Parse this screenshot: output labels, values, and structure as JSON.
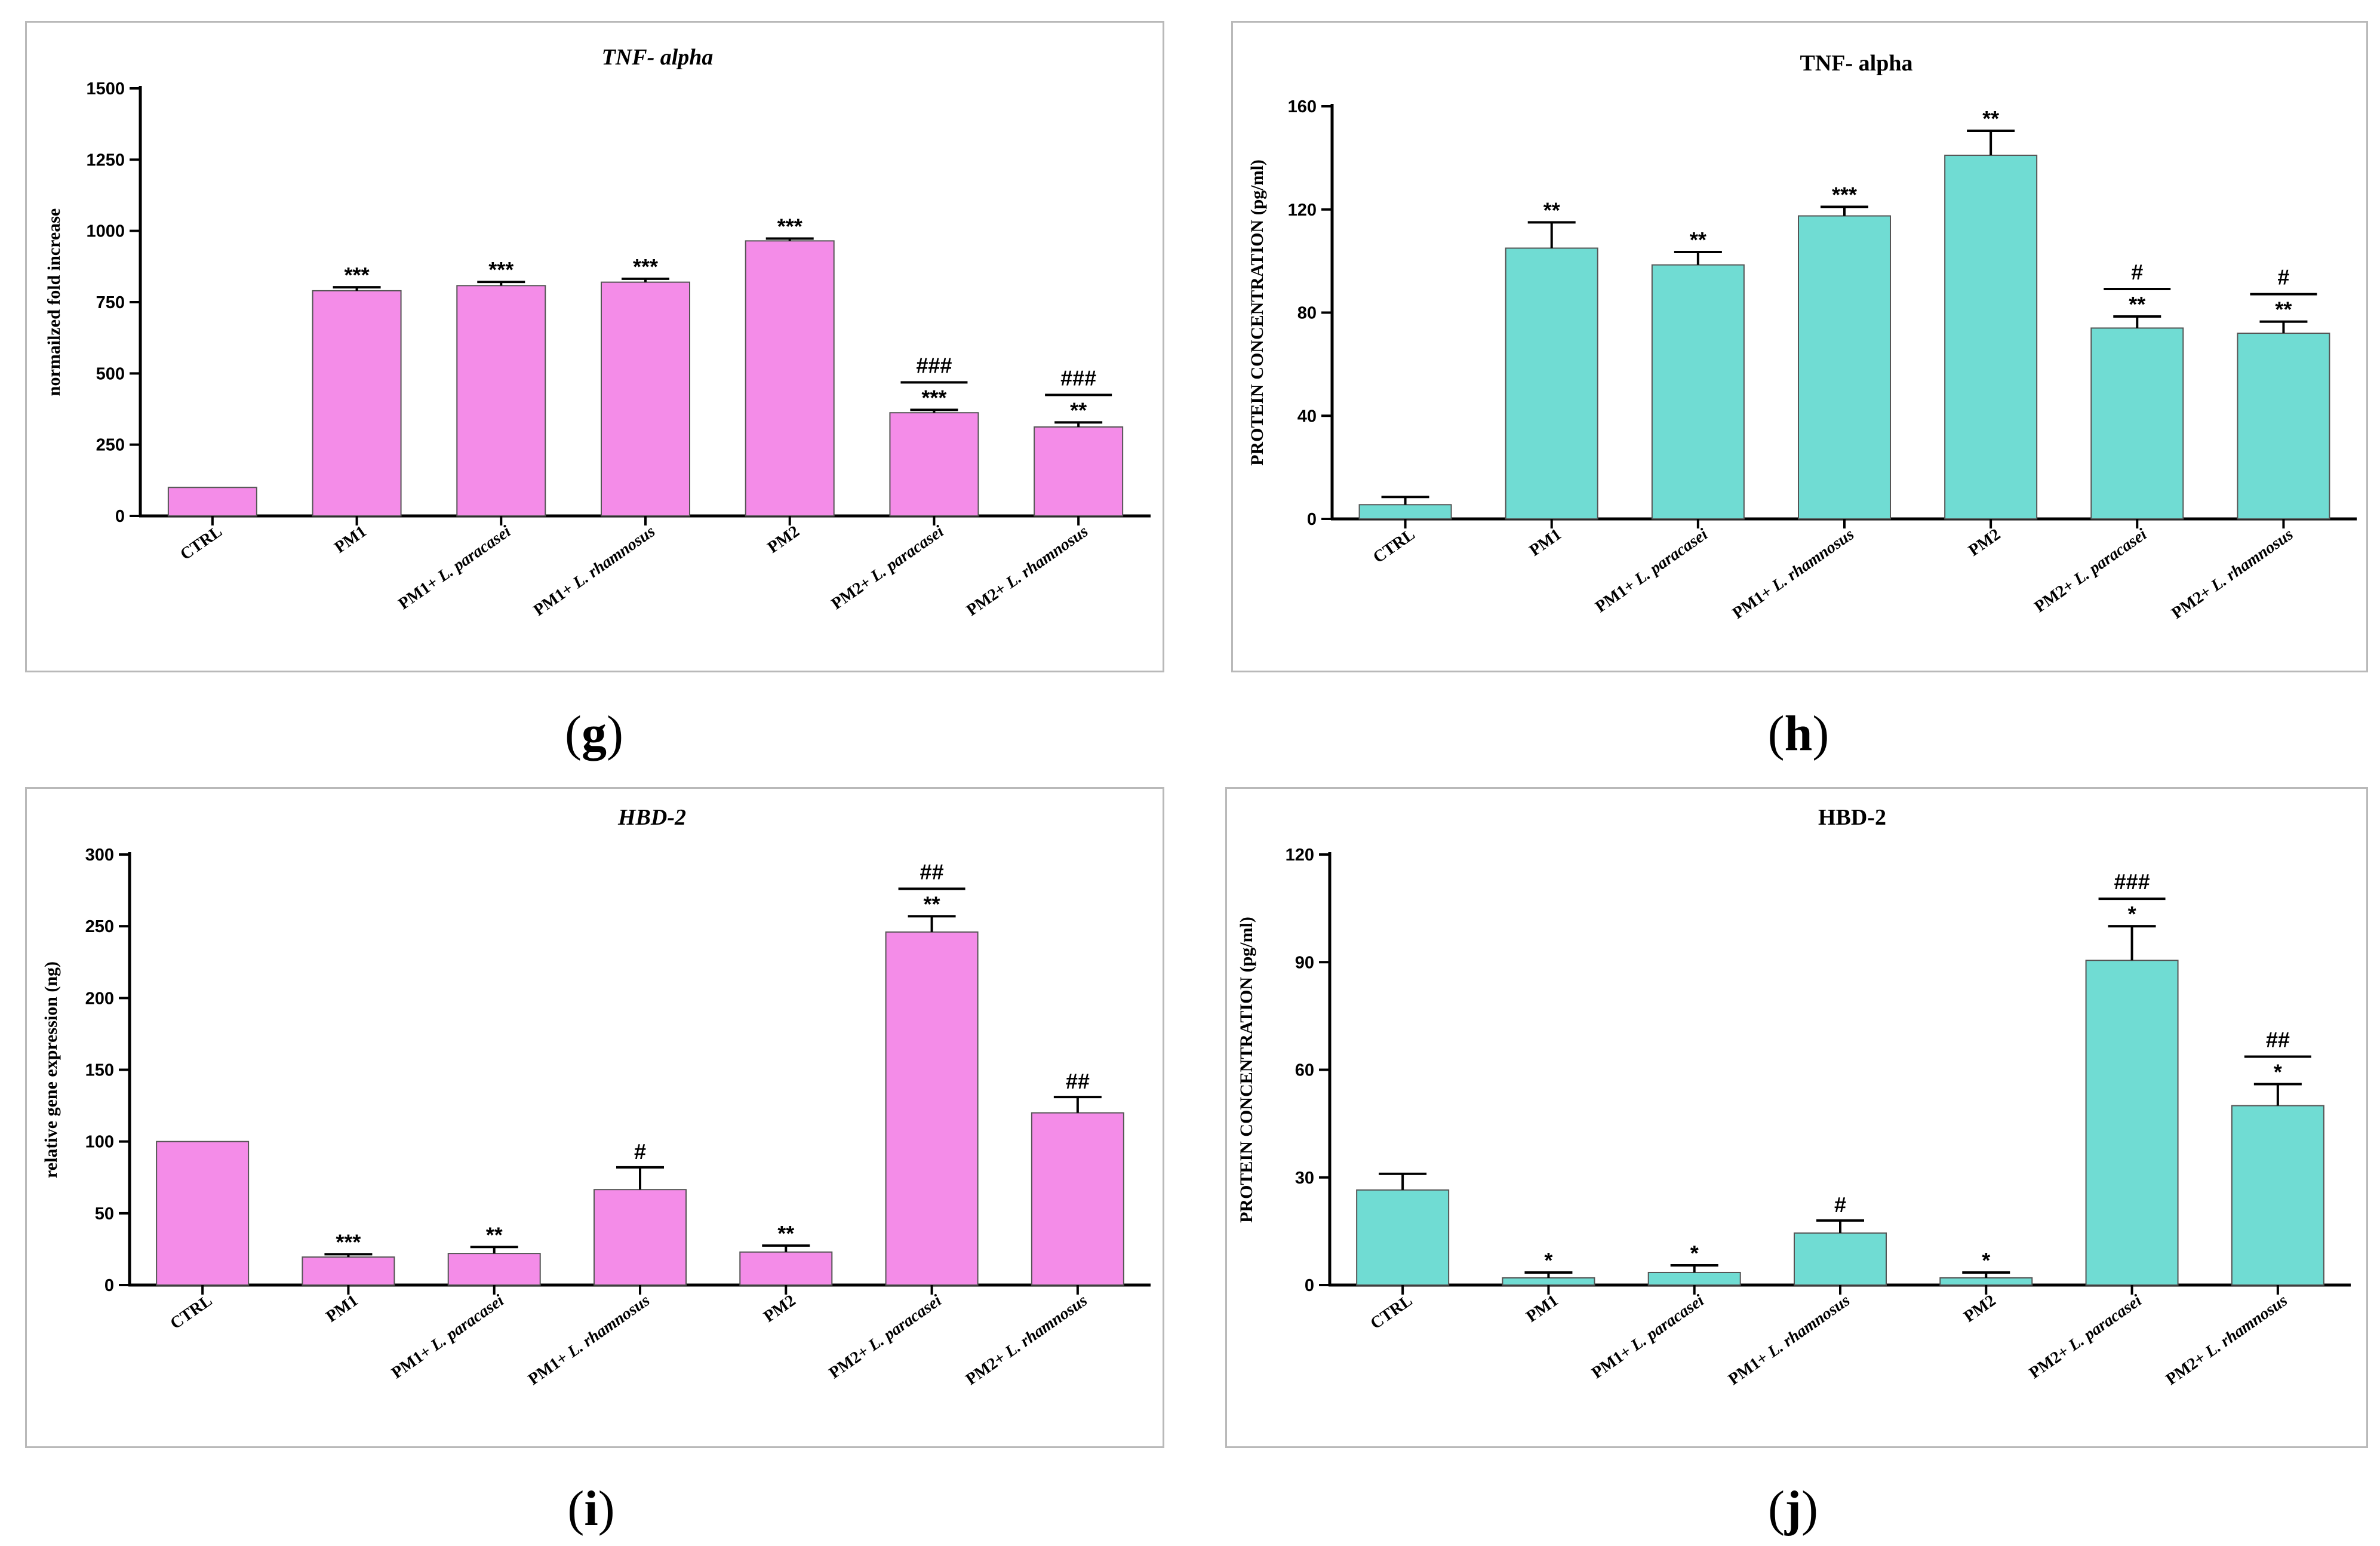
{
  "panel_labels": [
    "g",
    "h",
    "i",
    "j"
  ],
  "colors": {
    "pink": "#f48ce8",
    "teal": "#70dcd3",
    "edge": "#555555"
  },
  "chart_data": [
    {
      "type": "bar",
      "title": "TNF- alpha",
      "title_italic": true,
      "xlabel": "",
      "ylabel": "normailzed fold increase",
      "ylim": [
        0,
        1500
      ],
      "yticks": [
        0,
        250,
        500,
        750,
        1000,
        1250,
        1500
      ],
      "categories": [
        [
          "CTRL"
        ],
        [
          "PM1"
        ],
        [
          "PM1+ ",
          "L. paracasei"
        ],
        [
          "PM1+ ",
          "L. rhamnosus"
        ],
        [
          "PM2"
        ],
        [
          "PM2+ ",
          "L. paracasei"
        ],
        [
          "PM2+ ",
          "L. rhamnosus"
        ]
      ],
      "values": [
        100,
        790,
        808,
        820,
        965,
        362,
        312
      ],
      "errors": [
        0,
        12,
        13,
        12,
        8,
        10,
        16
      ],
      "stars": [
        "",
        "***",
        "***",
        "***",
        "***",
        "***",
        "**"
      ],
      "hashes": [
        "",
        "",
        "",
        "",
        "",
        "###",
        "###"
      ]
    },
    {
      "type": "bar",
      "title": "TNF- alpha",
      "title_italic": false,
      "xlabel": "",
      "ylabel": "PROTEIN CONCENTRATION (pg/ml)",
      "ylim": [
        0,
        160
      ],
      "yticks": [
        0,
        40,
        80,
        120,
        160
      ],
      "categories": [
        [
          "CTRL"
        ],
        [
          "PM1"
        ],
        [
          "PM1+ ",
          "L. paracasei"
        ],
        [
          "PM1+ ",
          "L. rhamnosus"
        ],
        [
          "PM2"
        ],
        [
          "PM2+ ",
          "L. paracasei"
        ],
        [
          "PM2+ ",
          "L. rhamnosus"
        ]
      ],
      "values": [
        5.5,
        105,
        98.5,
        117.5,
        141,
        74,
        72
      ],
      "errors": [
        3,
        10,
        5,
        3.5,
        9.5,
        4.5,
        4.5
      ],
      "stars": [
        "",
        "**",
        "**",
        "***",
        "**",
        "**",
        "**"
      ],
      "hashes": [
        "",
        "",
        "",
        "",
        "",
        "#",
        "#"
      ]
    },
    {
      "type": "bar",
      "title": "HBD-2",
      "title_italic": true,
      "xlabel": "",
      "ylabel": "relative gene expression (ng)",
      "ylim": [
        0,
        300
      ],
      "yticks": [
        0,
        50,
        100,
        150,
        200,
        250,
        300
      ],
      "categories": [
        [
          "CTRL"
        ],
        [
          "PM1"
        ],
        [
          "PM1+ ",
          "L. paracasei"
        ],
        [
          "PM1+ ",
          "L. rhamnosus"
        ],
        [
          "PM2"
        ],
        [
          "PM2+ ",
          "L. paracasei"
        ],
        [
          "PM2+ ",
          "L. rhamnosus"
        ]
      ],
      "values": [
        100,
        19.5,
        22,
        66.5,
        23,
        246,
        120
      ],
      "errors": [
        0,
        2,
        4.5,
        15.5,
        4.5,
        11,
        11
      ],
      "stars": [
        "",
        "***",
        "**",
        "",
        "**",
        "**",
        ""
      ],
      "hashes": [
        "",
        "",
        "",
        "#",
        "",
        "##",
        "##"
      ]
    },
    {
      "type": "bar",
      "title": "HBD-2",
      "title_italic": false,
      "xlabel": "",
      "ylabel": "PROTEIN CONCENTRATION (pg/ml)",
      "ylim": [
        0,
        120
      ],
      "yticks": [
        0,
        30,
        60,
        90,
        120
      ],
      "categories": [
        [
          "CTRL"
        ],
        [
          "PM1"
        ],
        [
          "PM1+ ",
          "L. paracasei"
        ],
        [
          "PM1+ ",
          "L. rhamnosus"
        ],
        [
          "PM2"
        ],
        [
          "PM2+ ",
          "L. paracasei"
        ],
        [
          "PM2+ ",
          "L. rhamnosus"
        ]
      ],
      "values": [
        26.5,
        2,
        3.5,
        14.5,
        2,
        90.5,
        50
      ],
      "errors": [
        4.5,
        1.5,
        2,
        3.5,
        1.5,
        9.5,
        6
      ],
      "stars": [
        "",
        "*",
        "*",
        "",
        "*",
        "*",
        "*"
      ],
      "hashes": [
        "",
        "",
        "",
        "#",
        "",
        "###",
        "##"
      ]
    }
  ]
}
